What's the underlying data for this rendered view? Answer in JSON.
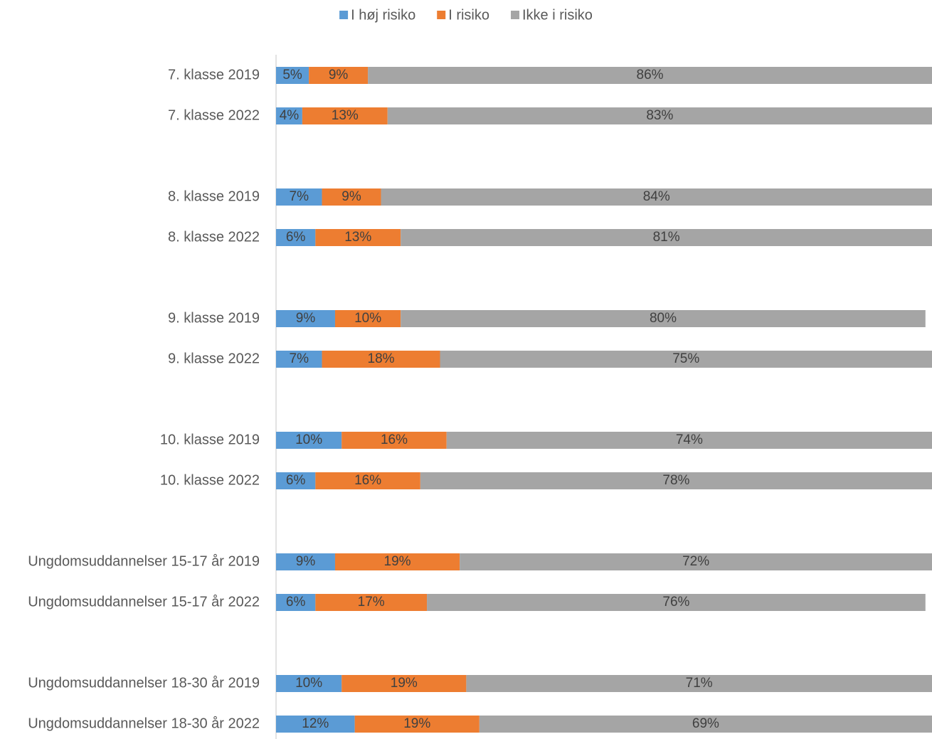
{
  "chart_data": {
    "type": "stacked_bar_horizontal",
    "categories": [
      "7. klasse 2019",
      "7. klasse 2022",
      null,
      "8. klasse 2019",
      "8. klasse 2022",
      null,
      "9. klasse 2019",
      "9. klasse 2022",
      null,
      "10. klasse 2019",
      "10. klasse 2022",
      null,
      "Ungdomsuddannelser 15-17 år 2019",
      "Ungdomsuddannelser 15-17 år 2022",
      null,
      "Ungdomsuddannelser 18-30 år 2019",
      "Ungdomsuddannelser 18-30 år 2022"
    ],
    "series": [
      {
        "name": "I høj risiko",
        "color": "#5b9bd5",
        "values": [
          5,
          4,
          null,
          7,
          6,
          null,
          9,
          7,
          null,
          10,
          6,
          null,
          9,
          6,
          null,
          10,
          12
        ],
        "value_labels": [
          "5%",
          "4%",
          null,
          "7%",
          "6%",
          null,
          "9%",
          "7%",
          null,
          "10%",
          "6%",
          null,
          "9%",
          "6%",
          null,
          "10%",
          "12%"
        ]
      },
      {
        "name": "I risiko",
        "color": "#ed7d31",
        "values": [
          9,
          13,
          null,
          9,
          13,
          null,
          10,
          18,
          null,
          16,
          16,
          null,
          19,
          17,
          null,
          19,
          19
        ],
        "value_labels": [
          "9%",
          "13%",
          null,
          "9%",
          "13%",
          null,
          "10%",
          "18%",
          null,
          "16%",
          "16%",
          null,
          "19%",
          "17%",
          null,
          "19%",
          "19%"
        ]
      },
      {
        "name": "Ikke i risiko",
        "color": "#a5a5a5",
        "values": [
          86,
          83,
          null,
          84,
          81,
          null,
          80,
          75,
          null,
          74,
          78,
          null,
          72,
          76,
          null,
          71,
          69
        ],
        "value_labels": [
          "86%",
          "83%",
          null,
          "84%",
          "81%",
          null,
          "80%",
          "75%",
          null,
          "74%",
          "78%",
          null,
          "72%",
          "76%",
          null,
          "71%",
          "69%"
        ]
      }
    ],
    "xlim": [
      0,
      100
    ],
    "legend": "top"
  }
}
